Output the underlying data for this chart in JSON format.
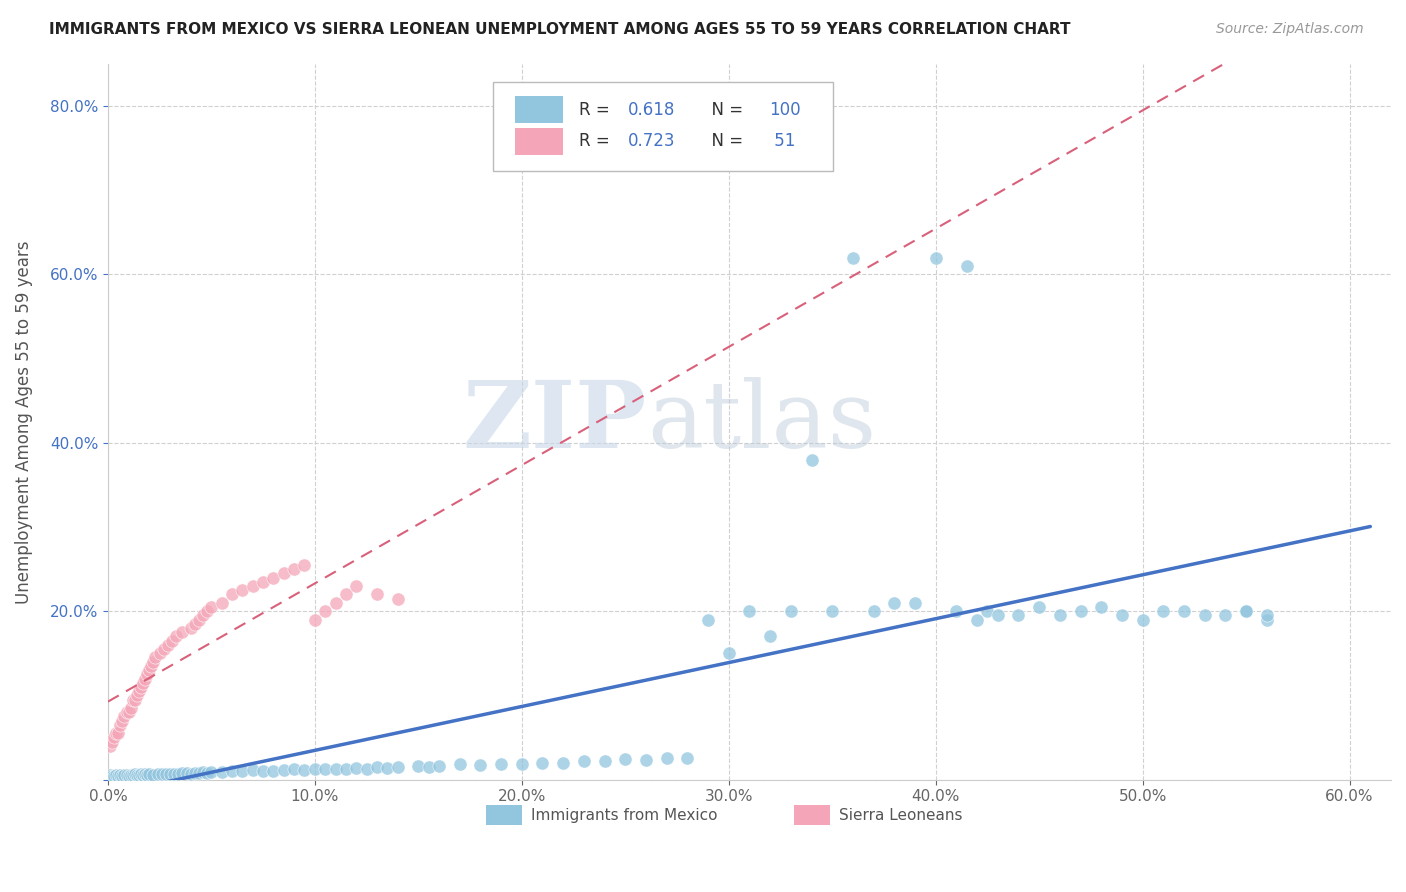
{
  "title": "IMMIGRANTS FROM MEXICO VS SIERRA LEONEAN UNEMPLOYMENT AMONG AGES 55 TO 59 YEARS CORRELATION CHART",
  "source": "Source: ZipAtlas.com",
  "ylabel": "Unemployment Among Ages 55 to 59 years",
  "xlim": [
    0.0,
    0.62
  ],
  "ylim": [
    0.0,
    0.85
  ],
  "xticks": [
    0.0,
    0.1,
    0.2,
    0.3,
    0.4,
    0.5,
    0.6
  ],
  "yticks": [
    0.0,
    0.2,
    0.4,
    0.6,
    0.8
  ],
  "xticklabels": [
    "0.0%",
    "10.0%",
    "20.0%",
    "30.0%",
    "40.0%",
    "50.0%",
    "60.0%"
  ],
  "yticklabels": [
    "",
    "20.0%",
    "40.0%",
    "60.0%",
    "80.0%"
  ],
  "legend_labels": [
    "Immigrants from Mexico",
    "Sierra Leoneans"
  ],
  "R_mexico": 0.618,
  "N_mexico": 100,
  "R_sierra": 0.723,
  "N_sierra": 51,
  "legend_R_color": "#4472c4",
  "scatter_mexico_color": "#92c5de",
  "scatter_sierra_color": "#f4a6b8",
  "line_mexico_color": "#4472c4",
  "line_sierra_color": "#d9607a",
  "watermark_zip": "ZIP",
  "watermark_atlas": "atlas",
  "background_color": "#ffffff",
  "grid_color": "#d0d0d0",
  "mexico_x": [
    0.001,
    0.002,
    0.003,
    0.004,
    0.005,
    0.006,
    0.007,
    0.008,
    0.009,
    0.01,
    0.011,
    0.012,
    0.013,
    0.014,
    0.015,
    0.016,
    0.017,
    0.018,
    0.019,
    0.02,
    0.022,
    0.024,
    0.026,
    0.028,
    0.03,
    0.032,
    0.034,
    0.036,
    0.038,
    0.04,
    0.042,
    0.044,
    0.046,
    0.048,
    0.05,
    0.055,
    0.06,
    0.065,
    0.07,
    0.075,
    0.08,
    0.085,
    0.09,
    0.095,
    0.1,
    0.105,
    0.11,
    0.115,
    0.12,
    0.125,
    0.13,
    0.135,
    0.14,
    0.15,
    0.155,
    0.16,
    0.17,
    0.18,
    0.19,
    0.2,
    0.21,
    0.22,
    0.23,
    0.24,
    0.25,
    0.26,
    0.27,
    0.28,
    0.29,
    0.3,
    0.31,
    0.32,
    0.33,
    0.34,
    0.35,
    0.36,
    0.37,
    0.38,
    0.39,
    0.4,
    0.41,
    0.415,
    0.42,
    0.425,
    0.43,
    0.44,
    0.45,
    0.46,
    0.47,
    0.48,
    0.49,
    0.5,
    0.51,
    0.52,
    0.53,
    0.54,
    0.55,
    0.55,
    0.56,
    0.56
  ],
  "mexico_y": [
    0.005,
    0.004,
    0.004,
    0.005,
    0.004,
    0.005,
    0.004,
    0.005,
    0.005,
    0.004,
    0.005,
    0.005,
    0.006,
    0.005,
    0.005,
    0.006,
    0.005,
    0.006,
    0.005,
    0.006,
    0.005,
    0.006,
    0.006,
    0.007,
    0.006,
    0.007,
    0.007,
    0.008,
    0.008,
    0.007,
    0.008,
    0.008,
    0.009,
    0.008,
    0.009,
    0.009,
    0.01,
    0.01,
    0.011,
    0.01,
    0.01,
    0.011,
    0.012,
    0.011,
    0.012,
    0.013,
    0.012,
    0.013,
    0.014,
    0.013,
    0.015,
    0.014,
    0.015,
    0.016,
    0.015,
    0.016,
    0.018,
    0.017,
    0.019,
    0.018,
    0.02,
    0.02,
    0.022,
    0.022,
    0.024,
    0.023,
    0.025,
    0.025,
    0.19,
    0.15,
    0.2,
    0.17,
    0.2,
    0.38,
    0.2,
    0.62,
    0.2,
    0.21,
    0.21,
    0.62,
    0.2,
    0.61,
    0.19,
    0.2,
    0.195,
    0.195,
    0.205,
    0.195,
    0.2,
    0.205,
    0.195,
    0.19,
    0.2,
    0.2,
    0.195,
    0.195,
    0.2,
    0.2,
    0.19,
    0.195
  ],
  "sierra_x": [
    0.001,
    0.002,
    0.003,
    0.004,
    0.005,
    0.006,
    0.007,
    0.008,
    0.009,
    0.01,
    0.011,
    0.012,
    0.013,
    0.014,
    0.015,
    0.016,
    0.017,
    0.018,
    0.019,
    0.02,
    0.021,
    0.022,
    0.023,
    0.025,
    0.027,
    0.029,
    0.031,
    0.033,
    0.036,
    0.04,
    0.042,
    0.044,
    0.046,
    0.048,
    0.05,
    0.055,
    0.06,
    0.065,
    0.07,
    0.075,
    0.08,
    0.085,
    0.09,
    0.095,
    0.1,
    0.105,
    0.11,
    0.115,
    0.12,
    0.13,
    0.14
  ],
  "sierra_y": [
    0.04,
    0.045,
    0.05,
    0.055,
    0.055,
    0.065,
    0.07,
    0.075,
    0.08,
    0.08,
    0.085,
    0.095,
    0.095,
    0.1,
    0.105,
    0.11,
    0.115,
    0.12,
    0.125,
    0.13,
    0.135,
    0.14,
    0.145,
    0.15,
    0.155,
    0.16,
    0.165,
    0.17,
    0.175,
    0.18,
    0.185,
    0.19,
    0.195,
    0.2,
    0.205,
    0.21,
    0.22,
    0.225,
    0.23,
    0.235,
    0.24,
    0.245,
    0.25,
    0.255,
    0.19,
    0.2,
    0.21,
    0.22,
    0.23,
    0.22,
    0.215
  ]
}
